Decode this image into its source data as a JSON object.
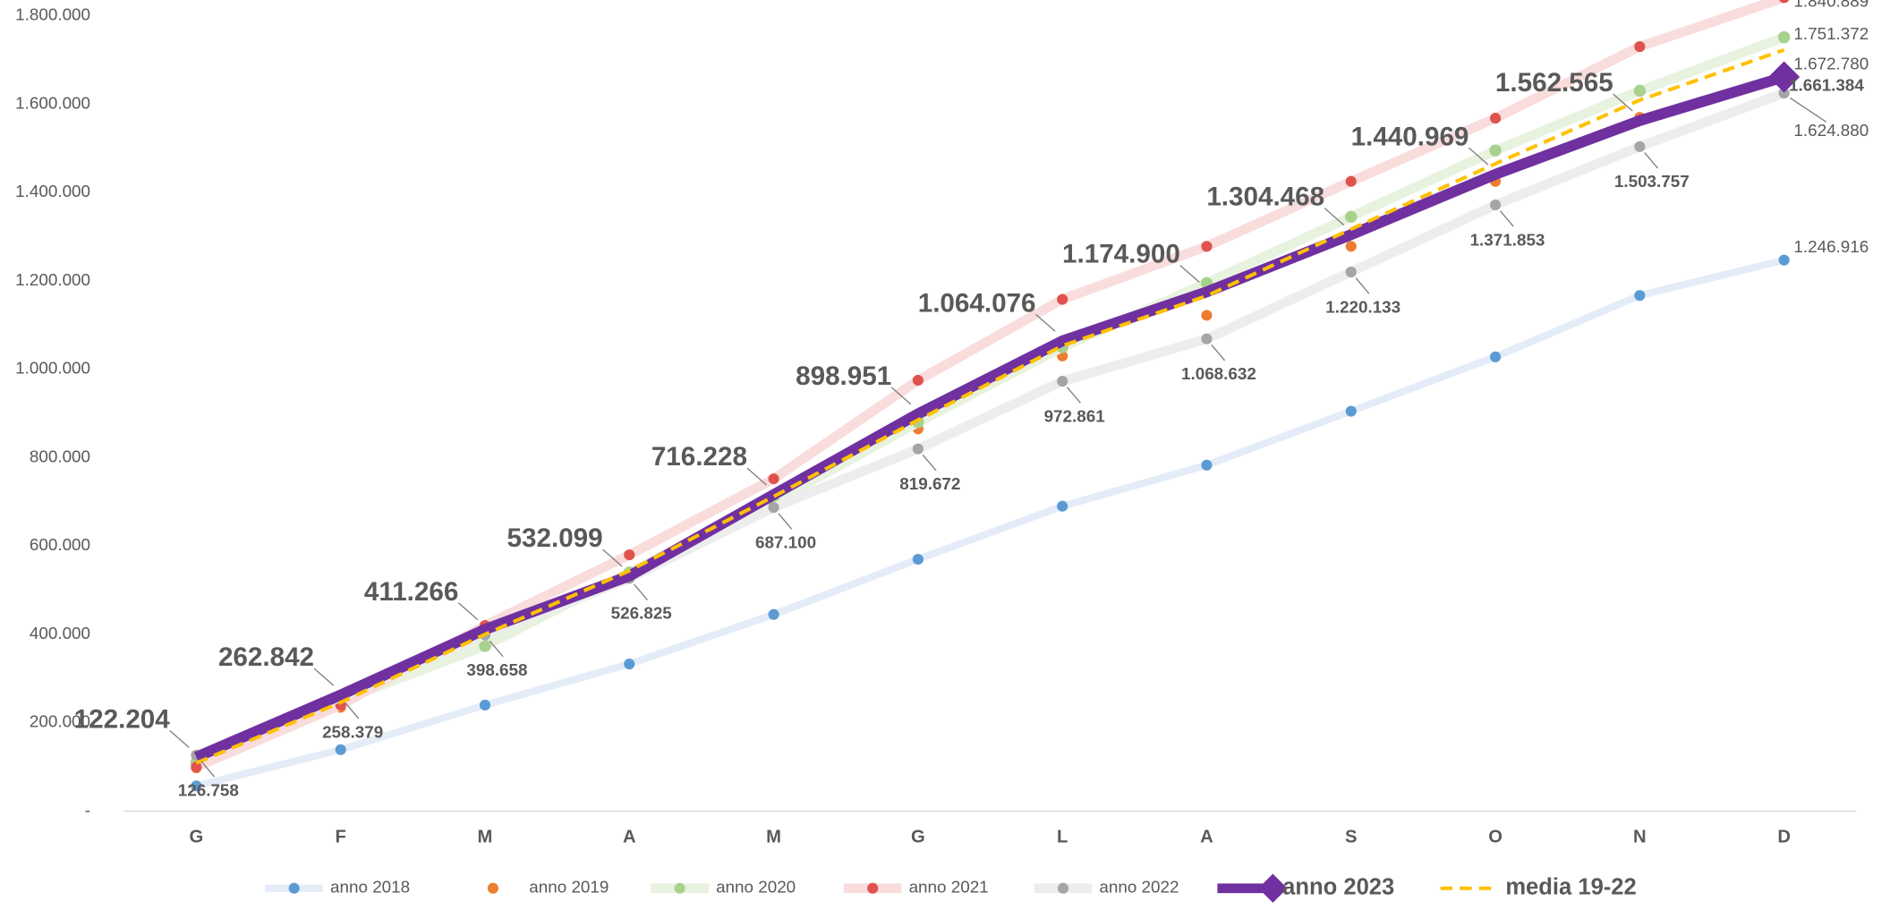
{
  "chart_data": {
    "type": "line",
    "categories": [
      "G",
      "F",
      "M",
      "A",
      "M",
      "G",
      "L",
      "A",
      "S",
      "O",
      "N",
      "D"
    ],
    "ylim": [
      0,
      1800000
    ],
    "yticks": [
      {
        "value": 0,
        "label": "-"
      },
      {
        "value": 200000,
        "label": "200.000"
      },
      {
        "value": 400000,
        "label": "400.000"
      },
      {
        "value": 600000,
        "label": "600.000"
      },
      {
        "value": 800000,
        "label": "800.000"
      },
      {
        "value": 1000000,
        "label": "1.000.000"
      },
      {
        "value": 1200000,
        "label": "1.200.000"
      },
      {
        "value": 1400000,
        "label": "1.400.000"
      },
      {
        "value": 1600000,
        "label": "1.600.000"
      },
      {
        "value": 1800000,
        "label": "1.800.000"
      }
    ],
    "grid": false,
    "legend": "bottom",
    "series": [
      {
        "name": "anno 2018",
        "color": "#5b9bd5",
        "line_color": "#e3ecf7",
        "line_width": 6,
        "markers": true,
        "values": [
          57000,
          139000,
          240000,
          333000,
          445000,
          570000,
          690000,
          783000,
          905000,
          1028000,
          1167000,
          1246916
        ],
        "value_labels": [
          null,
          null,
          null,
          null,
          null,
          null,
          null,
          null,
          null,
          null,
          null,
          "1.246.916"
        ]
      },
      {
        "name": "anno 2019",
        "color": "#ed7d31",
        "line_color": null,
        "line_width": 0,
        "markers": true,
        "values": [
          98000,
          235000,
          410000,
          530000,
          710000,
          865000,
          1030000,
          1122000,
          1278000,
          1425000,
          1570000,
          1672780
        ],
        "value_labels": [
          null,
          null,
          null,
          null,
          null,
          null,
          null,
          null,
          null,
          null,
          null,
          "1.672.780"
        ]
      },
      {
        "name": "anno 2020",
        "color": "#a9d18e",
        "line_color": "#e7f2df",
        "line_width": 8,
        "markers": true,
        "values": [
          110000,
          250000,
          374000,
          540000,
          700000,
          880000,
          1050000,
          1195000,
          1345000,
          1495000,
          1630000,
          1751372
        ],
        "value_labels": [
          null,
          null,
          null,
          null,
          null,
          null,
          null,
          null,
          null,
          null,
          null,
          "1.751.372"
        ]
      },
      {
        "name": "anno 2021",
        "color": "#e0524e",
        "line_color": "#f9dcdc",
        "line_width": 8,
        "markers": true,
        "values": [
          100000,
          240000,
          420000,
          580000,
          752000,
          975000,
          1158000,
          1278000,
          1425000,
          1568000,
          1730000,
          1840889
        ],
        "value_labels": [
          null,
          null,
          null,
          null,
          null,
          null,
          null,
          null,
          null,
          null,
          null,
          "1.840.889"
        ]
      },
      {
        "name": "anno 2022",
        "color": "#a5a5a5",
        "line_color": "#ededed",
        "line_width": 8,
        "markers": true,
        "values": [
          126758,
          258379,
          398658,
          526825,
          687100,
          819672,
          972861,
          1068632,
          1220133,
          1371853,
          1503757,
          1624880
        ],
        "value_labels": [
          "126.758",
          "258.379",
          "398.658",
          "526.825",
          "687.100",
          "819.672",
          "972.861",
          "1.068.632",
          "1.220.133",
          "1.371.853",
          "1.503.757",
          "1.624.880"
        ]
      },
      {
        "name": "anno 2023",
        "color": "#7030a0",
        "line_color": "#7030a0",
        "line_width": 9,
        "markers": false,
        "values": [
          122204,
          262842,
          411266,
          532099,
          716228,
          898951,
          1064076,
          1174900,
          1304468,
          1440969,
          1562565,
          1661384
        ],
        "value_labels": [
          "122.204",
          "262.842",
          "411.266",
          "532.099",
          "716.228",
          "898.951",
          "1.064.076",
          "1.174.900",
          "1.304.468",
          "1.440.969",
          "1.562.565",
          "1.661.384"
        ]
      },
      {
        "name": "media 19-22",
        "color": "#ffc000",
        "line_color": "#ffc000",
        "line_width": 3,
        "dashed": true,
        "markers": false,
        "values": [
          109000,
          246000,
          400000,
          544000,
          712000,
          885000,
          1053000,
          1166000,
          1317000,
          1465000,
          1609000,
          1722480
        ]
      }
    ]
  }
}
